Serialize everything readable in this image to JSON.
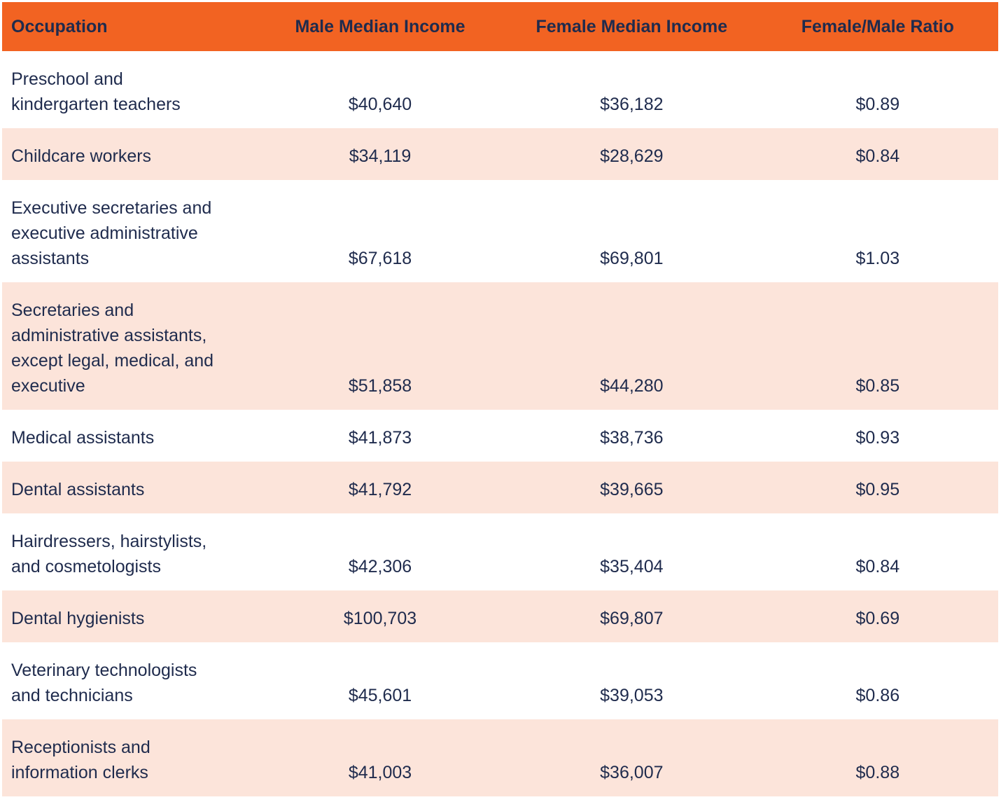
{
  "colors": {
    "header_bg": "#F26322",
    "row_alt_bg": "#FCE4DA",
    "row_bg": "#FFFFFF",
    "text": "#1F2B4D"
  },
  "table": {
    "header": {
      "occupation": "Occupation",
      "male": "Male Median Income",
      "female": "Female Median Income",
      "ratio": "Female/Male Ratio"
    },
    "rows": [
      {
        "occupation": "Preschool and\nkindergarten teachers",
        "male": "$40,640",
        "female": "$36,182",
        "ratio": "$0.89"
      },
      {
        "occupation": "Childcare workers",
        "male": "$34,119",
        "female": "$28,629",
        "ratio": "$0.84"
      },
      {
        "occupation": "Executive secretaries and\nexecutive administrative\nassistants",
        "male": "$67,618",
        "female": "$69,801",
        "ratio": "$1.03"
      },
      {
        "occupation": "Secretaries and\nadministrative assistants,\nexcept legal, medical, and\nexecutive",
        "male": "$51,858",
        "female": "$44,280",
        "ratio": "$0.85"
      },
      {
        "occupation": "Medical assistants",
        "male": "$41,873",
        "female": "$38,736",
        "ratio": "$0.93"
      },
      {
        "occupation": "Dental assistants",
        "male": "$41,792",
        "female": "$39,665",
        "ratio": "$0.95"
      },
      {
        "occupation": "Hairdressers, hairstylists,\nand cosmetologists",
        "male": "$42,306",
        "female": "$35,404",
        "ratio": "$0.84"
      },
      {
        "occupation": "Dental hygienists",
        "male": "$100,703",
        "female": "$69,807",
        "ratio": "$0.69"
      },
      {
        "occupation": "Veterinary technologists\nand technicians",
        "male": "$45,601",
        "female": "$39,053",
        "ratio": "$0.86"
      },
      {
        "occupation": "Receptionists and\ninformation clerks",
        "male": "$41,003",
        "female": "$36,007",
        "ratio": "$0.88"
      }
    ]
  },
  "chart_data": {
    "type": "table",
    "columns": [
      "Occupation",
      "Male Median Income",
      "Female Median Income",
      "Female/Male Ratio"
    ],
    "rows": [
      [
        "Preschool and kindergarten teachers",
        "$40,640",
        "$36,182",
        "$0.89"
      ],
      [
        "Childcare workers",
        "$34,119",
        "$28,629",
        "$0.84"
      ],
      [
        "Executive secretaries and executive administrative assistants",
        "$67,618",
        "$69,801",
        "$1.03"
      ],
      [
        "Secretaries and administrative assistants, except legal, medical, and executive",
        "$51,858",
        "$44,280",
        "$0.85"
      ],
      [
        "Medical assistants",
        "$41,873",
        "$38,736",
        "$0.93"
      ],
      [
        "Dental assistants",
        "$41,792",
        "$39,665",
        "$0.95"
      ],
      [
        "Hairdressers, hairstylists, and cosmetologists",
        "$42,306",
        "$35,404",
        "$0.84"
      ],
      [
        "Dental hygienists",
        "$100,703",
        "$69,807",
        "$0.69"
      ],
      [
        "Veterinary technologists and technicians",
        "$45,601",
        "$39,053",
        "$0.86"
      ],
      [
        "Receptionists and information clerks",
        "$41,003",
        "$36,007",
        "$0.88"
      ]
    ],
    "numeric": {
      "male_median_income": [
        40640,
        34119,
        67618,
        51858,
        41873,
        41792,
        42306,
        100703,
        45601,
        41003
      ],
      "female_median_income": [
        36182,
        28629,
        69801,
        44280,
        38736,
        39665,
        35404,
        69807,
        39053,
        36007
      ],
      "female_male_ratio": [
        0.89,
        0.84,
        1.03,
        0.85,
        0.93,
        0.95,
        0.84,
        0.69,
        0.86,
        0.88
      ]
    },
    "layout": {
      "header_style": "orange band, bold navy text",
      "row_striping": "even rows peach, odd rows white",
      "occupation_align": "left",
      "value_align": "center"
    }
  }
}
